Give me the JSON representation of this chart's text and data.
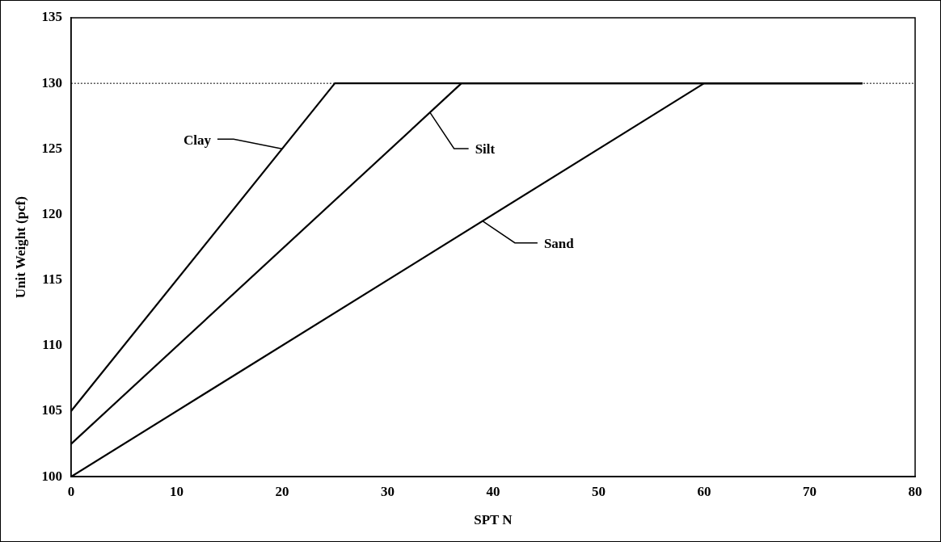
{
  "chart_data": {
    "type": "line",
    "xlabel": "SPT N",
    "ylabel": "Unit Weight (pcf)",
    "xlim": [
      0,
      80
    ],
    "xticks": [
      0,
      10,
      20,
      30,
      40,
      50,
      60,
      70,
      80
    ],
    "ylim": [
      100,
      135
    ],
    "yticks": [
      100,
      105,
      110,
      115,
      120,
      125,
      130,
      135
    ],
    "grid": false,
    "legend": false,
    "marker": "none",
    "line_style": "solid",
    "series": [
      {
        "color": "#000000",
        "x": [
          0,
          25,
          75
        ],
        "values": [
          105,
          130,
          130
        ]
      },
      {
        "color": "#000000",
        "x": [
          0,
          37,
          75
        ],
        "values": [
          102.5,
          130,
          130
        ]
      },
      {
        "color": "#000000",
        "x": [
          0,
          60,
          75
        ],
        "values": [
          100,
          130,
          130
        ]
      }
    ],
    "annotations": [
      {
        "text": "Clay",
        "x": 20,
        "y": 125
      },
      {
        "text": "Silt",
        "x": 34,
        "y": 127.8
      },
      {
        "text": "Sand",
        "x": 39,
        "y": 119.5
      }
    ],
    "ref_lines": [
      {
        "axis": "y",
        "value": 130,
        "line_style": "dotted",
        "color": "#000000"
      }
    ]
  }
}
